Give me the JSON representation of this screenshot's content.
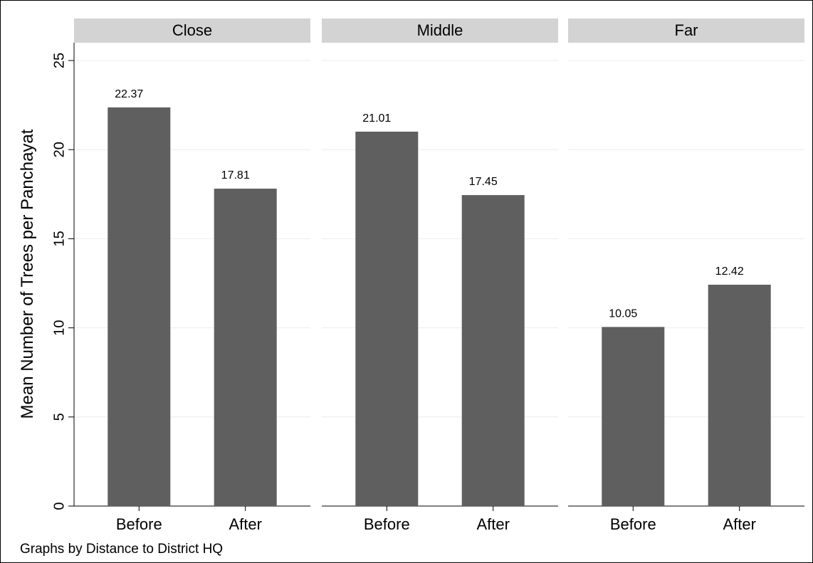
{
  "chart_data": {
    "type": "bar",
    "ylabel": "Mean Number of Trees per Panchayat",
    "ylim": [
      0,
      26
    ],
    "yticks": [
      0,
      5,
      10,
      15,
      20,
      25
    ],
    "categories": [
      "Before",
      "After"
    ],
    "panels": [
      {
        "name": "Close",
        "values": [
          22.37,
          17.81
        ],
        "labels": [
          "22.37",
          "17.81"
        ]
      },
      {
        "name": "Middle",
        "values": [
          21.01,
          17.45
        ],
        "labels": [
          "21.01",
          "17.45"
        ]
      },
      {
        "name": "Far",
        "values": [
          10.05,
          12.42
        ],
        "labels": [
          "10.05",
          "12.42"
        ]
      }
    ],
    "grid": true,
    "bar_color": "#5f5f5f",
    "strip_color": "#d3d3d3",
    "note": "Graphs by Distance to District HQ"
  }
}
